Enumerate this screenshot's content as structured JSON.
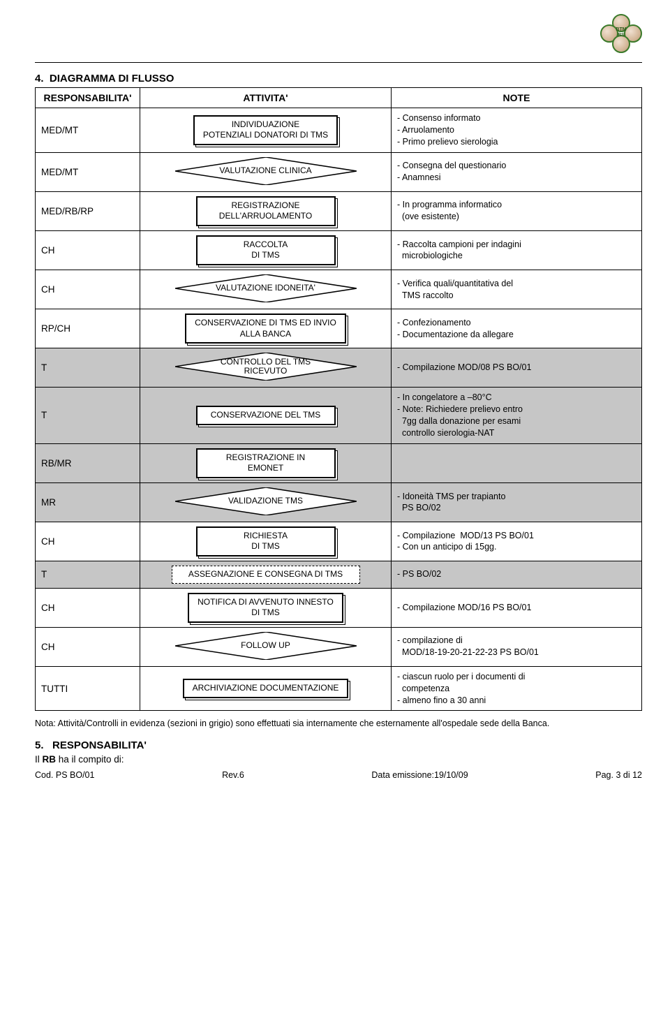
{
  "header": {
    "section_num": "4.",
    "section_title": "DIAGRAMMA DI FLUSSO"
  },
  "table": {
    "col_resp": "RESPONSABILITA'",
    "col_act": "ATTIVITA'",
    "col_note": "NOTE"
  },
  "rows": [
    {
      "resp": "MED/MT",
      "act_type": "process",
      "act": "INDIVIDUAZIONE\nPOTENZIALI DONATORI  DI TMS",
      "notes": [
        "- Consenso informato",
        "- Arruolamento",
        "- Primo prelievo sierologia"
      ],
      "gray": false
    },
    {
      "resp": "MED/MT",
      "act_type": "decision",
      "act": "VALUTAZIONE CLINICA",
      "notes": [
        "- Consegna del questionario",
        "- Anamnesi"
      ],
      "gray": false
    },
    {
      "resp": "MED/RB/RP",
      "act_type": "process",
      "act": "REGISTRAZIONE\nDELL'ARRUOLAMENTO",
      "notes": [
        "- In programma informatico",
        "  (ove esistente)"
      ],
      "gray": false
    },
    {
      "resp": "CH",
      "act_type": "process",
      "act": "RACCOLTA\nDI TMS",
      "notes": [
        "- Raccolta campioni per indagini",
        "  microbiologiche"
      ],
      "gray": false
    },
    {
      "resp": "CH",
      "act_type": "decision",
      "act": "VALUTAZIONE IDONEITA'",
      "notes": [
        "- Verifica quali/quantitativa del",
        "  TMS raccolto"
      ],
      "gray": false
    },
    {
      "resp": "RP/CH",
      "act_type": "process",
      "act": "CONSERVAZIONE DI TMS ED INVIO\nALLA BANCA",
      "notes": [
        "- Confezionamento",
        "- Documentazione da allegare"
      ],
      "gray": false
    },
    {
      "resp": "T",
      "act_type": "decision",
      "act": "CONTROLLO DEL TMS\nRICEVUTO",
      "notes": [
        "- Compilazione MOD/08 PS BO/01"
      ],
      "gray": true
    },
    {
      "resp": "T",
      "act_type": "process",
      "act": "CONSERVAZIONE DEL TMS",
      "notes": [
        "- In congelatore a –80°C",
        "- Note: Richiedere prelievo entro",
        "  7gg dalla donazione per esami",
        "  controllo sierologia-NAT"
      ],
      "gray": true
    },
    {
      "resp": "RB/MR",
      "act_type": "process",
      "act": "REGISTRAZIONE IN\nEMONET",
      "notes": [],
      "gray": true
    },
    {
      "resp": "MR",
      "act_type": "decision",
      "act": "VALIDAZIONE TMS",
      "notes": [
        "- Idoneità TMS per trapianto",
        "  PS BO/02"
      ],
      "gray": true
    },
    {
      "resp": "CH",
      "act_type": "process",
      "act": "RICHIESTA\nDI TMS",
      "notes": [
        "- Compilazione  MOD/13 PS BO/01",
        "- Con un anticipo di 15gg."
      ],
      "gray": false
    },
    {
      "resp": "T",
      "act_type": "dashed",
      "act": "ASSEGNAZIONE E CONSEGNA DI TMS",
      "notes": [
        "- PS BO/02"
      ],
      "gray": true
    },
    {
      "resp": "CH",
      "act_type": "process",
      "act": "NOTIFICA DI AVVENUTO INNESTO\nDI TMS",
      "notes": [
        "- Compilazione MOD/16 PS BO/01"
      ],
      "gray": false
    },
    {
      "resp": "CH",
      "act_type": "decision",
      "act": "FOLLOW UP",
      "notes": [
        "- compilazione di",
        "  MOD/18-19-20-21-22-23 PS BO/01"
      ],
      "gray": false
    },
    {
      "resp": "TUTTI",
      "act_type": "process",
      "act": "ARCHIVIAZIONE DOCUMENTAZIONE",
      "notes": [
        "- ciascun ruolo per i documenti di",
        "  competenza",
        "- almeno fino a 30 anni"
      ],
      "gray": false
    }
  ],
  "footnote": "Nota: Attività/Controlli in evidenza (sezioni in grigio) sono effettuati sia internamente che esternamente all'ospedale sede della Banca.",
  "section5": {
    "num": "5.",
    "title": "RESPONSABILITA'",
    "line1": "Il RB ha il compito di:"
  },
  "footer": {
    "left": "Cod. PS BO/01",
    "mid": "Rev.6",
    "date": "Data emissione:19/10/09",
    "right": "Pag. 3 di 12"
  },
  "colors": {
    "border": "#000000",
    "gray_bg": "#c6c6c6",
    "logo_green": "#3a7a2a"
  }
}
